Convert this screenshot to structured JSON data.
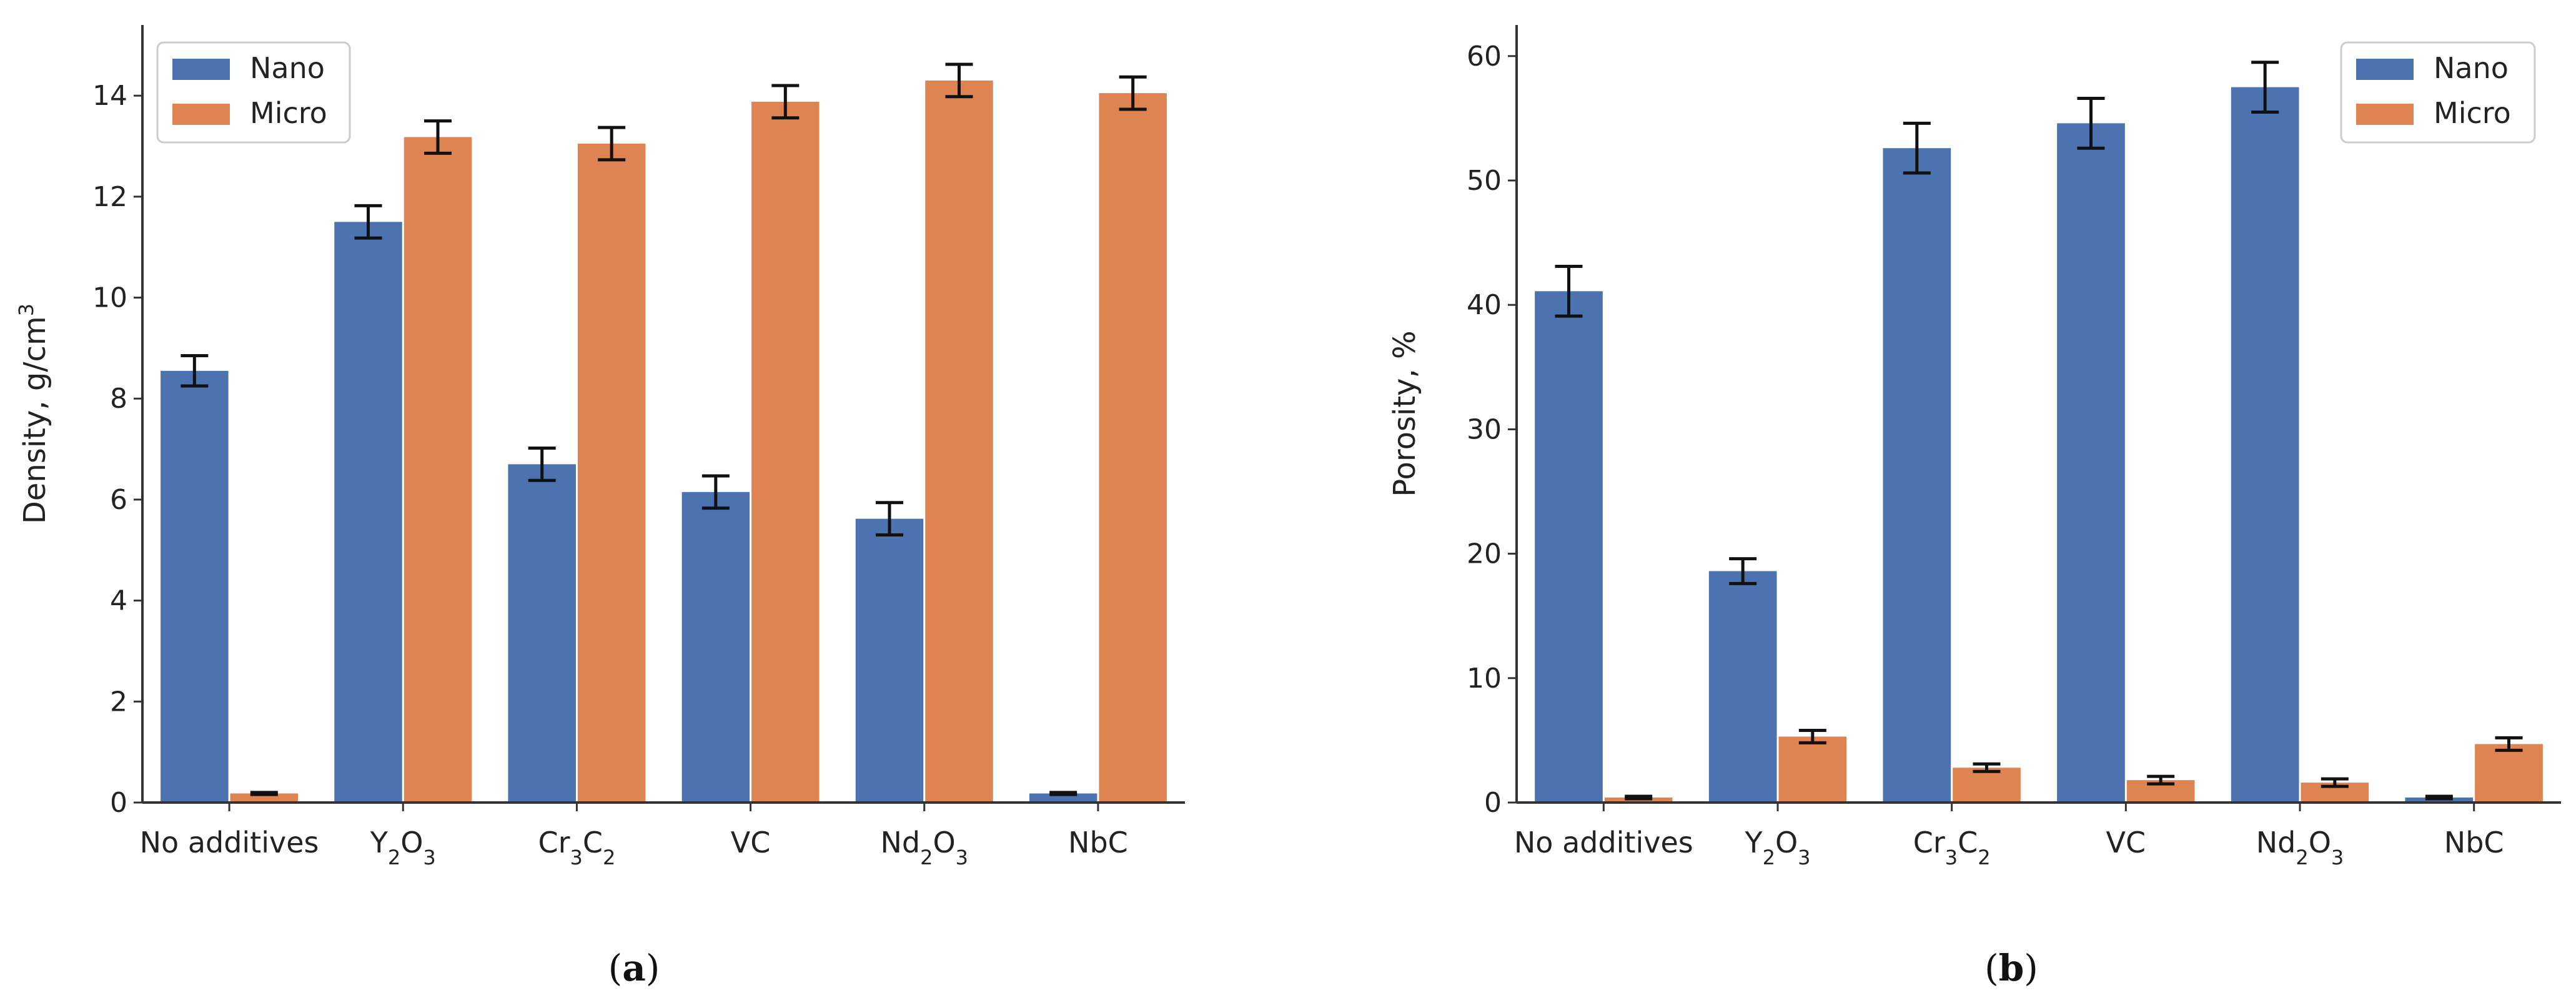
{
  "colors": {
    "nano": "#4c72b0",
    "micro": "#dd8452",
    "axis": "#333333",
    "errorbar": "#111111"
  },
  "chart_data": [
    {
      "type": "bar",
      "panel": "a",
      "panel_label_parts": [
        "(",
        "a",
        ")"
      ],
      "ylabel": {
        "text": "Density, g/cm",
        "sup": "3"
      },
      "ylim": [
        0,
        15.4
      ],
      "yticks": [
        0,
        2,
        4,
        6,
        8,
        10,
        12,
        14
      ],
      "legend_position": "top-left",
      "categories": [
        {
          "label": "No additives",
          "parts": [
            [
              "No additives",
              false
            ]
          ]
        },
        {
          "label": "Y2O3",
          "parts": [
            [
              "Y",
              false
            ],
            [
              "2",
              true
            ],
            [
              "O",
              false
            ],
            [
              "3",
              true
            ]
          ]
        },
        {
          "label": "Cr3C2",
          "parts": [
            [
              "Cr",
              false
            ],
            [
              "3",
              true
            ],
            [
              "C",
              false
            ],
            [
              "2",
              true
            ]
          ]
        },
        {
          "label": "VC",
          "parts": [
            [
              "VC",
              false
            ]
          ]
        },
        {
          "label": "Nd2O3",
          "parts": [
            [
              "Nd",
              false
            ],
            [
              "2",
              true
            ],
            [
              "O",
              false
            ],
            [
              "3",
              true
            ]
          ]
        },
        {
          "label": "NbC",
          "parts": [
            [
              "NbC",
              false
            ]
          ]
        }
      ],
      "series": [
        {
          "name": "Nano",
          "values": [
            8.55,
            11.5,
            6.7,
            6.15,
            5.62,
            0.18
          ],
          "errors": [
            0.3,
            0.32,
            0.32,
            0.32,
            0.32,
            0.02
          ]
        },
        {
          "name": "Micro",
          "values": [
            0.18,
            13.18,
            13.05,
            13.88,
            14.3,
            14.05
          ],
          "errors": [
            0.02,
            0.32,
            0.32,
            0.32,
            0.32,
            0.32
          ]
        }
      ]
    },
    {
      "type": "bar",
      "panel": "b",
      "panel_label_parts": [
        "(",
        "b",
        ")"
      ],
      "ylabel": {
        "text": "Porosity, %",
        "sup": ""
      },
      "ylim": [
        0,
        62.5
      ],
      "yticks": [
        0,
        10,
        20,
        30,
        40,
        50,
        60
      ],
      "legend_position": "top-right",
      "categories": [
        {
          "label": "No additives",
          "parts": [
            [
              "No additives",
              false
            ]
          ]
        },
        {
          "label": "Y2O3",
          "parts": [
            [
              "Y",
              false
            ],
            [
              "2",
              true
            ],
            [
              "O",
              false
            ],
            [
              "3",
              true
            ]
          ]
        },
        {
          "label": "Cr3C2",
          "parts": [
            [
              "Cr",
              false
            ],
            [
              "3",
              true
            ],
            [
              "C",
              false
            ],
            [
              "2",
              true
            ]
          ]
        },
        {
          "label": "VC",
          "parts": [
            [
              "VC",
              false
            ]
          ]
        },
        {
          "label": "Nd2O3",
          "parts": [
            [
              "Nd",
              false
            ],
            [
              "2",
              true
            ],
            [
              "O",
              false
            ],
            [
              "3",
              true
            ]
          ]
        },
        {
          "label": "NbC",
          "parts": [
            [
              "NbC",
              false
            ]
          ]
        }
      ],
      "series": [
        {
          "name": "Nano",
          "values": [
            41.1,
            18.6,
            52.6,
            54.6,
            57.5,
            0.4
          ],
          "errors": [
            2.0,
            1.0,
            2.0,
            2.0,
            2.0,
            0.1
          ]
        },
        {
          "name": "Micro",
          "values": [
            0.4,
            5.3,
            2.8,
            1.8,
            1.6,
            4.7
          ],
          "errors": [
            0.1,
            0.5,
            0.3,
            0.3,
            0.3,
            0.5
          ]
        }
      ]
    }
  ]
}
